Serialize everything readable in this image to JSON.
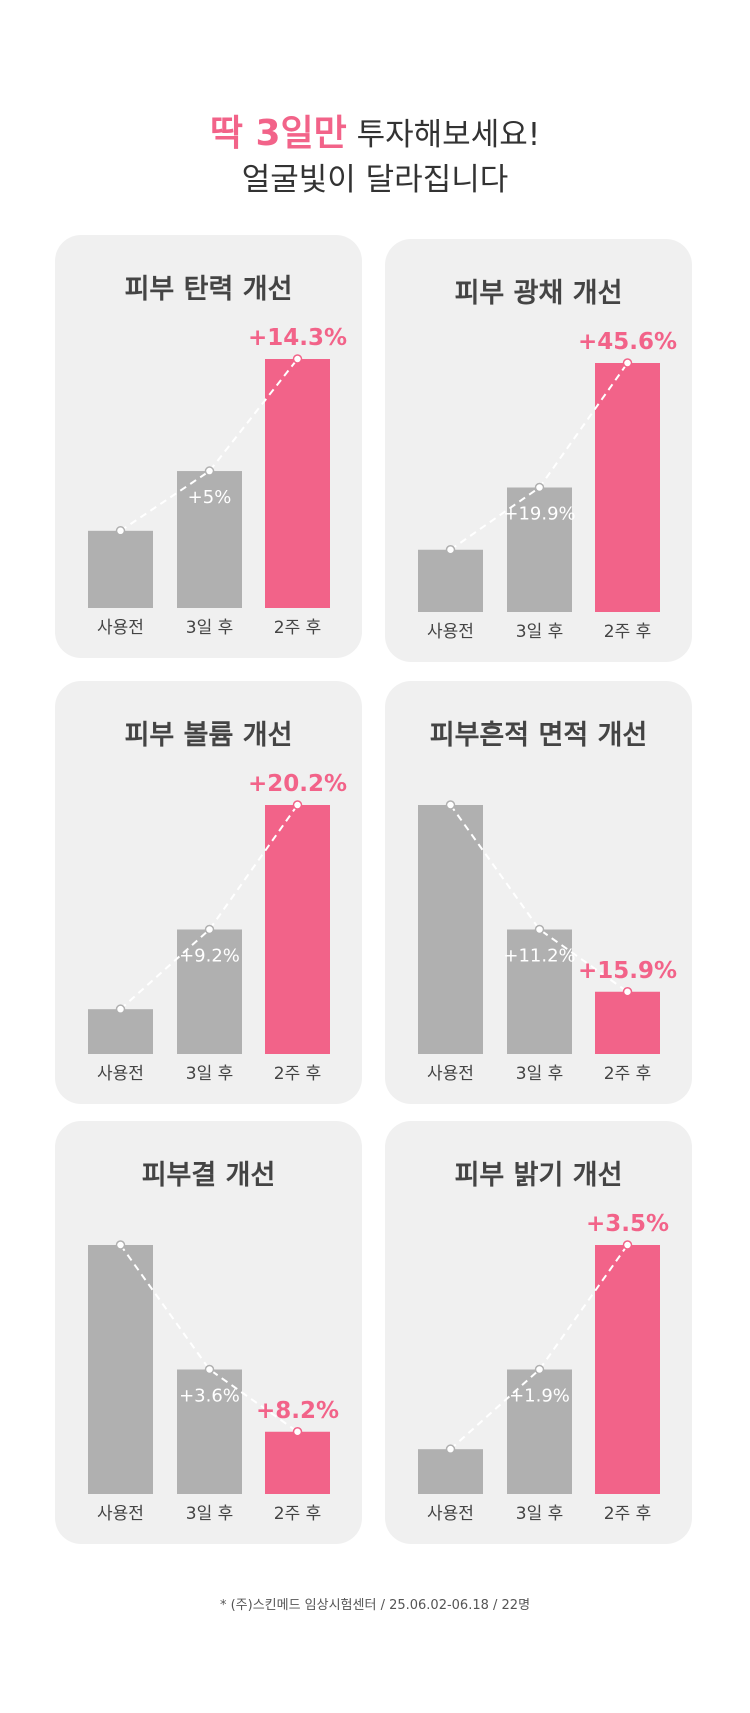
{
  "header": {
    "accent": "딱 3일만",
    "line1_rest": " 투자해보세요!",
    "line2": "얼굴빛이 달라집니다"
  },
  "colors": {
    "accent": "#f26389",
    "bar_gray": "#b0b0b0",
    "card_bg": "#f0f0f0"
  },
  "chart_data": [
    {
      "type": "bar",
      "title": "피부 탄력 개선",
      "categories": [
        "사용전",
        "3일 후",
        "2주 후"
      ],
      "levels": [
        0.31,
        0.55,
        1.0
      ],
      "labels": [
        "",
        "+5%",
        "+14.3%"
      ]
    },
    {
      "type": "bar",
      "title": "피부 광채 개선",
      "categories": [
        "사용전",
        "3일 후",
        "2주 후"
      ],
      "levels": [
        0.25,
        0.5,
        1.0
      ],
      "labels": [
        "",
        "+19.9%",
        "+45.6%"
      ]
    },
    {
      "type": "bar",
      "title": "피부 볼륨 개선",
      "categories": [
        "사용전",
        "3일 후",
        "2주 후"
      ],
      "levels": [
        0.18,
        0.5,
        1.0
      ],
      "labels": [
        "",
        "+9.2%",
        "+20.2%"
      ]
    },
    {
      "type": "bar",
      "title": "피부흔적 면적 개선",
      "categories": [
        "사용전",
        "3일 후",
        "2주 후"
      ],
      "levels": [
        1.0,
        0.5,
        0.25
      ],
      "labels": [
        "",
        "+11.2%",
        "+15.9%"
      ]
    },
    {
      "type": "bar",
      "title": "피부결 개선",
      "categories": [
        "사용전",
        "3일 후",
        "2주 후"
      ],
      "levels": [
        1.0,
        0.5,
        0.25
      ],
      "labels": [
        "",
        "+3.6%",
        "+8.2%"
      ]
    },
    {
      "type": "bar",
      "title": "피부 밝기 개선",
      "categories": [
        "사용전",
        "3일 후",
        "2주 후"
      ],
      "levels": [
        0.18,
        0.5,
        1.0
      ],
      "labels": [
        "",
        "+1.9%",
        "+3.5%"
      ]
    }
  ],
  "footer": "* (주)스킨메드 임상시험센터 / 25.06.02-06.18 / 22명"
}
